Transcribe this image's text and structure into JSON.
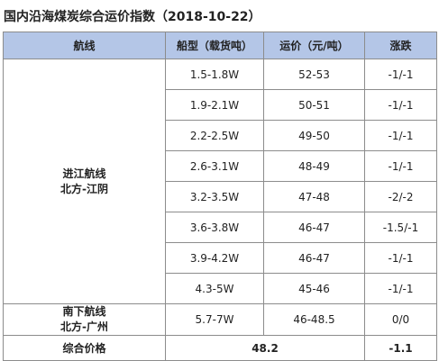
{
  "title": "国内沿海煤炭综合运价指数（2018-10-22）",
  "table": {
    "header": [
      "航线",
      "船型（载货吨）",
      "运价（元/吨）",
      "涨跌"
    ],
    "groups": [
      {
        "route": [
          "进江航线",
          "北方-江阴"
        ],
        "rows": [
          [
            "1.5-1.8W",
            "52-53",
            "-1/-1"
          ],
          [
            "1.9-2.1W",
            "50-51",
            "-1/-1"
          ],
          [
            "2.2-2.5W",
            "49-50",
            "-1/-1"
          ],
          [
            "2.6-3.1W",
            "48-49",
            "-1/-1"
          ],
          [
            "3.2-3.5W",
            "47-48",
            "-2/-2"
          ],
          [
            "3.6-3.8W",
            "46-47",
            "-1.5/-1"
          ],
          [
            "3.9-4.2W",
            "46-47",
            "-1/-1"
          ],
          [
            "4.3-5W",
            "45-46",
            "-1/-1"
          ]
        ]
      },
      {
        "route": [
          "南下航线",
          "北方-广州"
        ],
        "rows": [
          [
            "5.7-7W",
            "46-48.5",
            "0/0"
          ]
        ]
      }
    ],
    "summary": {
      "label": "综合价格",
      "price": "48.2",
      "change": "-1.1"
    }
  }
}
